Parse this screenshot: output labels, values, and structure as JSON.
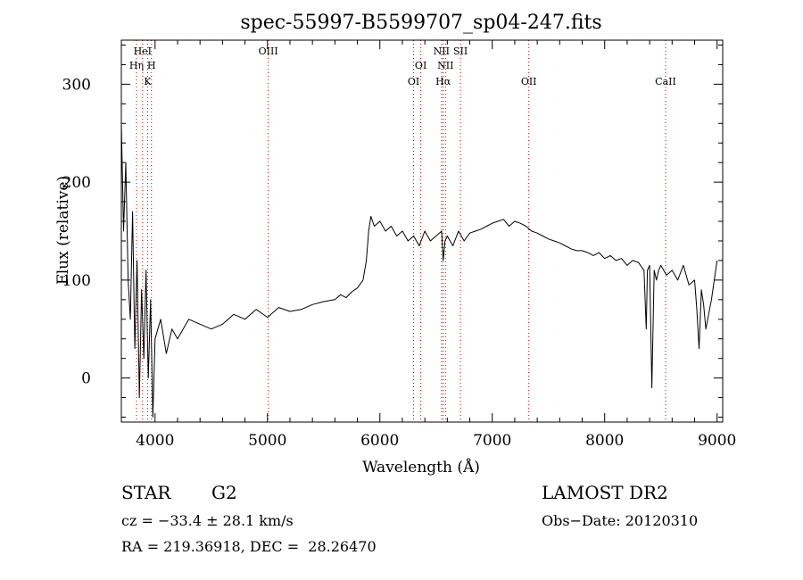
{
  "chart_data": {
    "type": "line",
    "title": "spec-55997-B5599707_sp04-247.fits",
    "xlabel": "Wavelength (Å)",
    "ylabel": "Flux (relative)",
    "xlim": [
      3700,
      9050
    ],
    "ylim": [
      -45,
      345
    ],
    "x_ticks": [
      4000,
      5000,
      6000,
      7000,
      8000,
      9000
    ],
    "y_ticks": [
      0,
      100,
      200,
      300
    ],
    "grid": false,
    "line_color": "#000000",
    "marker_color": "#cc0000",
    "series": [
      {
        "x": [
          3700,
          3720,
          3740,
          3760,
          3780,
          3800,
          3820,
          3840,
          3860,
          3880,
          3900,
          3920,
          3940,
          3960,
          3980,
          4000,
          4050,
          4100,
          4150,
          4200,
          4300,
          4400,
          4500,
          4600,
          4700,
          4800,
          4900,
          5000,
          5100,
          5200,
          5300,
          5400,
          5500,
          5600,
          5650,
          5700,
          5750,
          5800,
          5850,
          5880,
          5900,
          5920,
          5950,
          6000,
          6050,
          6100,
          6150,
          6200,
          6250,
          6300,
          6350,
          6400,
          6450,
          6500,
          6550,
          6563,
          6580,
          6600,
          6650,
          6700,
          6750,
          6800,
          6850,
          6900,
          6950,
          7000,
          7050,
          7100,
          7150,
          7200,
          7250,
          7300,
          7350,
          7400,
          7450,
          7500,
          7550,
          7600,
          7650,
          7700,
          7750,
          7800,
          7850,
          7900,
          7950,
          8000,
          8050,
          8100,
          8150,
          8200,
          8250,
          8300,
          8350,
          8370,
          8380,
          8400,
          8420,
          8440,
          8460,
          8480,
          8500,
          8550,
          8600,
          8650,
          8700,
          8750,
          8800,
          8820,
          8840,
          8860,
          8880,
          8900,
          8950,
          9000
        ],
        "y": [
          260,
          150,
          220,
          100,
          60,
          170,
          30,
          120,
          -20,
          90,
          20,
          110,
          0,
          80,
          -40,
          40,
          60,
          25,
          50,
          40,
          60,
          55,
          50,
          55,
          65,
          60,
          70,
          62,
          72,
          68,
          70,
          75,
          78,
          80,
          85,
          82,
          88,
          92,
          100,
          120,
          150,
          165,
          155,
          160,
          150,
          155,
          145,
          150,
          140,
          145,
          135,
          150,
          140,
          145,
          150,
          120,
          140,
          145,
          135,
          150,
          140,
          148,
          150,
          152,
          155,
          158,
          160,
          162,
          155,
          160,
          158,
          155,
          150,
          148,
          145,
          142,
          140,
          138,
          135,
          132,
          130,
          130,
          128,
          125,
          128,
          122,
          125,
          120,
          122,
          115,
          120,
          118,
          110,
          50,
          110,
          115,
          -10,
          110,
          100,
          110,
          115,
          105,
          110,
          100,
          115,
          95,
          100,
          70,
          30,
          90,
          75,
          50,
          80,
          120
        ]
      }
    ],
    "line_markers": [
      {
        "label": "HeI",
        "x": 3889,
        "row": 0
      },
      {
        "label": "Hη",
        "x": 3835,
        "row": 1
      },
      {
        "label": "H",
        "x": 3968,
        "row": 1
      },
      {
        "label": "K",
        "x": 3934,
        "row": 2
      },
      {
        "label": "OIII",
        "x": 5007,
        "row": 0
      },
      {
        "label": "OI",
        "x": 6300,
        "row": 2
      },
      {
        "label": "OI",
        "x": 6364,
        "row": 1
      },
      {
        "label": "NII",
        "x": 6548,
        "row": 0
      },
      {
        "label": "NII",
        "x": 6584,
        "row": 1
      },
      {
        "label": "Hα",
        "x": 6563,
        "row": 2
      },
      {
        "label": "SII",
        "x": 6717,
        "row": 0
      },
      {
        "label": "OII",
        "x": 7325,
        "row": 2
      },
      {
        "label": "CaII",
        "x": 8542,
        "row": 2
      }
    ]
  },
  "info": {
    "class_label": "STAR",
    "subclass": "G2",
    "survey": "LAMOST DR2",
    "cz": "cz = −33.4 ± 28.1 km/s",
    "obs_date": "Obs−Date: 20120310",
    "coords": "RA = 219.36918, DEC =  28.26470"
  }
}
